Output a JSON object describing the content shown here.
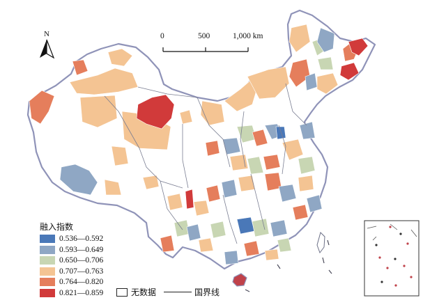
{
  "map": {
    "north_label": "N",
    "scale": {
      "ticks": [
        "0",
        "500",
        "1,000"
      ],
      "unit": "km"
    },
    "legend": {
      "title": "融入指数",
      "classes": [
        {
          "label": "0.536—0.592",
          "color": "#4a78b8"
        },
        {
          "label": "0.593—0.649",
          "color": "#8fa7c4"
        },
        {
          "label": "0.650—0.706",
          "color": "#c8d6b3"
        },
        {
          "label": "0.707—0.763",
          "color": "#f4c493"
        },
        {
          "label": "0.764—0.820",
          "color": "#e57e5c"
        },
        {
          "label": "0.821—0.859",
          "color": "#d13a3a"
        }
      ],
      "no_data_label": "无数据",
      "border_label": "国界线"
    },
    "colors": {
      "outline": "#6b6f86",
      "no_data": "#ffffff",
      "sea_islands": "#c0424a"
    }
  }
}
